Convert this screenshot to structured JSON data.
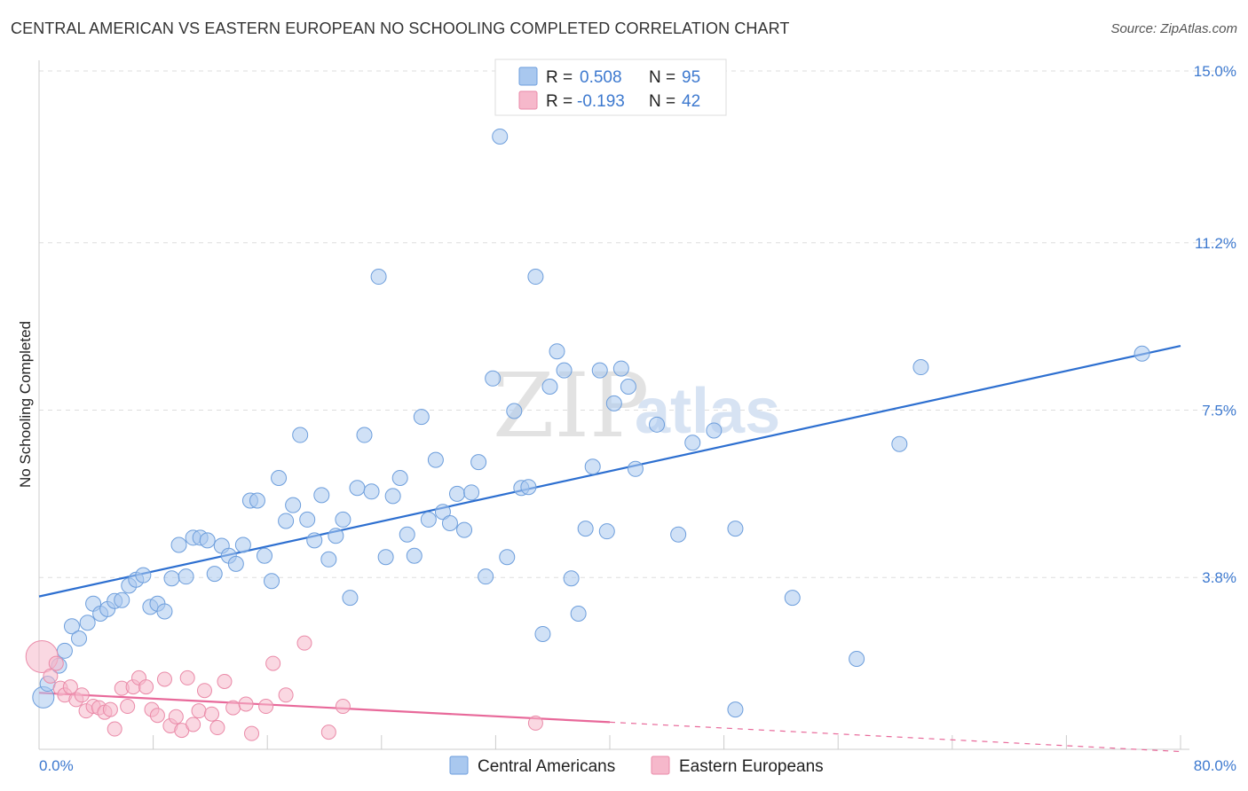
{
  "title": "CENTRAL AMERICAN VS EASTERN EUROPEAN NO SCHOOLING COMPLETED CORRELATION CHART",
  "source": "Source: ZipAtlas.com",
  "watermark": {
    "main": "ZIP",
    "sub": "atlas"
  },
  "legend": {
    "items": [
      {
        "r_label": "R =",
        "r_value": "0.508",
        "n_label": "N =",
        "n_value": "95",
        "color": "#a9c8ef"
      },
      {
        "r_label": "R =",
        "r_value": "-0.193",
        "n_label": "N =",
        "n_value": "42",
        "color": "#f6b8cb"
      }
    ]
  },
  "colors": {
    "blue_fill": "#a9c8ef",
    "blue_stroke": "#6d9edc",
    "blue_line": "#2d6fd0",
    "pink_fill": "#f6b8cb",
    "pink_stroke": "#ea8aa8",
    "pink_line": "#e8699a",
    "tick_text": "#3d79cf",
    "grid": "#dddddd"
  },
  "chart_data": {
    "type": "scatter",
    "title": "CENTRAL AMERICAN VS EASTERN EUROPEAN NO SCHOOLING COMPLETED CORRELATION CHART",
    "xlabel": "",
    "ylabel": "No Schooling Completed",
    "xlim": [
      0,
      80
    ],
    "ylim": [
      0,
      15
    ],
    "x_tick_labels": [
      "0.0%",
      "80.0%"
    ],
    "y_ticks": [
      3.8,
      7.5,
      11.2,
      15.0
    ],
    "y_tick_labels": [
      "3.8%",
      "7.5%",
      "11.2%",
      "15.0%"
    ],
    "grid": true,
    "legend_position": "top-center",
    "series": [
      {
        "name": "Central Americans",
        "color": "#a9c8ef",
        "trend": {
          "x": [
            0,
            80
          ],
          "y": [
            3.38,
            8.92
          ]
        },
        "points": [
          [
            0.3,
            1.15
          ],
          [
            0.6,
            1.45
          ],
          [
            1.4,
            1.85
          ],
          [
            1.8,
            2.18
          ],
          [
            2.3,
            2.72
          ],
          [
            2.8,
            2.45
          ],
          [
            3.4,
            2.8
          ],
          [
            3.8,
            3.22
          ],
          [
            4.3,
            3.0
          ],
          [
            4.8,
            3.1
          ],
          [
            5.3,
            3.28
          ],
          [
            5.8,
            3.3
          ],
          [
            6.3,
            3.62
          ],
          [
            6.8,
            3.75
          ],
          [
            7.3,
            3.85
          ],
          [
            7.8,
            3.15
          ],
          [
            8.3,
            3.22
          ],
          [
            8.8,
            3.05
          ],
          [
            9.3,
            3.78
          ],
          [
            9.8,
            4.52
          ],
          [
            10.3,
            3.82
          ],
          [
            10.8,
            4.68
          ],
          [
            11.3,
            4.68
          ],
          [
            11.8,
            4.62
          ],
          [
            12.3,
            3.88
          ],
          [
            12.8,
            4.5
          ],
          [
            13.3,
            4.28
          ],
          [
            13.8,
            4.1
          ],
          [
            14.3,
            4.52
          ],
          [
            14.8,
            5.5
          ],
          [
            15.3,
            5.5
          ],
          [
            15.8,
            4.28
          ],
          [
            16.3,
            3.72
          ],
          [
            16.8,
            6.0
          ],
          [
            17.3,
            5.05
          ],
          [
            17.8,
            5.4
          ],
          [
            18.3,
            6.95
          ],
          [
            18.8,
            5.08
          ],
          [
            19.3,
            4.62
          ],
          [
            19.8,
            5.62
          ],
          [
            20.3,
            4.2
          ],
          [
            20.8,
            4.72
          ],
          [
            21.3,
            5.08
          ],
          [
            21.8,
            3.35
          ],
          [
            22.3,
            5.78
          ],
          [
            22.8,
            6.95
          ],
          [
            23.3,
            5.7
          ],
          [
            23.8,
            10.45
          ],
          [
            24.3,
            4.25
          ],
          [
            24.8,
            5.6
          ],
          [
            25.3,
            6.0
          ],
          [
            25.8,
            4.75
          ],
          [
            26.3,
            4.28
          ],
          [
            26.8,
            7.35
          ],
          [
            27.3,
            5.08
          ],
          [
            27.8,
            6.4
          ],
          [
            28.3,
            5.25
          ],
          [
            28.8,
            5.0
          ],
          [
            29.3,
            5.65
          ],
          [
            29.8,
            4.85
          ],
          [
            30.3,
            5.68
          ],
          [
            30.8,
            6.35
          ],
          [
            31.3,
            3.82
          ],
          [
            31.8,
            8.2
          ],
          [
            32.3,
            13.55
          ],
          [
            32.8,
            4.25
          ],
          [
            33.3,
            7.48
          ],
          [
            33.8,
            5.78
          ],
          [
            34.3,
            5.8
          ],
          [
            34.8,
            10.45
          ],
          [
            35.3,
            2.55
          ],
          [
            35.8,
            8.02
          ],
          [
            36.3,
            8.8
          ],
          [
            36.8,
            8.38
          ],
          [
            37.3,
            3.78
          ],
          [
            37.8,
            3.0
          ],
          [
            38.3,
            4.88
          ],
          [
            38.8,
            6.25
          ],
          [
            39.3,
            8.38
          ],
          [
            39.8,
            4.82
          ],
          [
            40.3,
            7.65
          ],
          [
            40.8,
            8.42
          ],
          [
            41.3,
            8.02
          ],
          [
            41.8,
            6.2
          ],
          [
            43.3,
            7.18
          ],
          [
            44.8,
            4.75
          ],
          [
            45.8,
            6.78
          ],
          [
            47.3,
            7.05
          ],
          [
            48.8,
            0.88
          ],
          [
            48.8,
            4.88
          ],
          [
            52.8,
            3.35
          ],
          [
            57.3,
            2.0
          ],
          [
            60.3,
            6.75
          ],
          [
            61.8,
            8.45
          ],
          [
            77.3,
            8.75
          ]
        ]
      },
      {
        "name": "Eastern Europeans",
        "color": "#f6b8cb",
        "trend": {
          "x": [
            0,
            40
          ],
          "y": [
            1.25,
            0.6
          ],
          "dashed_to": [
            80,
            -0.05
          ]
        },
        "points": [
          [
            0.2,
            2.05
          ],
          [
            0.8,
            1.62
          ],
          [
            1.2,
            1.9
          ],
          [
            1.5,
            1.35
          ],
          [
            1.8,
            1.2
          ],
          [
            2.2,
            1.38
          ],
          [
            2.6,
            1.1
          ],
          [
            3.0,
            1.2
          ],
          [
            3.3,
            0.85
          ],
          [
            3.8,
            0.95
          ],
          [
            4.2,
            0.92
          ],
          [
            4.6,
            0.82
          ],
          [
            5.0,
            0.88
          ],
          [
            5.3,
            0.45
          ],
          [
            5.8,
            1.35
          ],
          [
            6.2,
            0.95
          ],
          [
            6.6,
            1.38
          ],
          [
            7.0,
            1.58
          ],
          [
            7.5,
            1.38
          ],
          [
            7.9,
            0.88
          ],
          [
            8.3,
            0.75
          ],
          [
            8.8,
            1.55
          ],
          [
            9.2,
            0.52
          ],
          [
            9.6,
            0.72
          ],
          [
            10.0,
            0.42
          ],
          [
            10.4,
            1.58
          ],
          [
            10.8,
            0.55
          ],
          [
            11.2,
            0.85
          ],
          [
            11.6,
            1.3
          ],
          [
            12.1,
            0.78
          ],
          [
            12.5,
            0.48
          ],
          [
            13.0,
            1.5
          ],
          [
            13.6,
            0.92
          ],
          [
            14.5,
            1.0
          ],
          [
            14.9,
            0.35
          ],
          [
            15.9,
            0.95
          ],
          [
            16.4,
            1.9
          ],
          [
            17.3,
            1.2
          ],
          [
            18.6,
            2.35
          ],
          [
            20.3,
            0.38
          ],
          [
            21.3,
            0.95
          ],
          [
            34.8,
            0.58
          ]
        ]
      }
    ]
  }
}
